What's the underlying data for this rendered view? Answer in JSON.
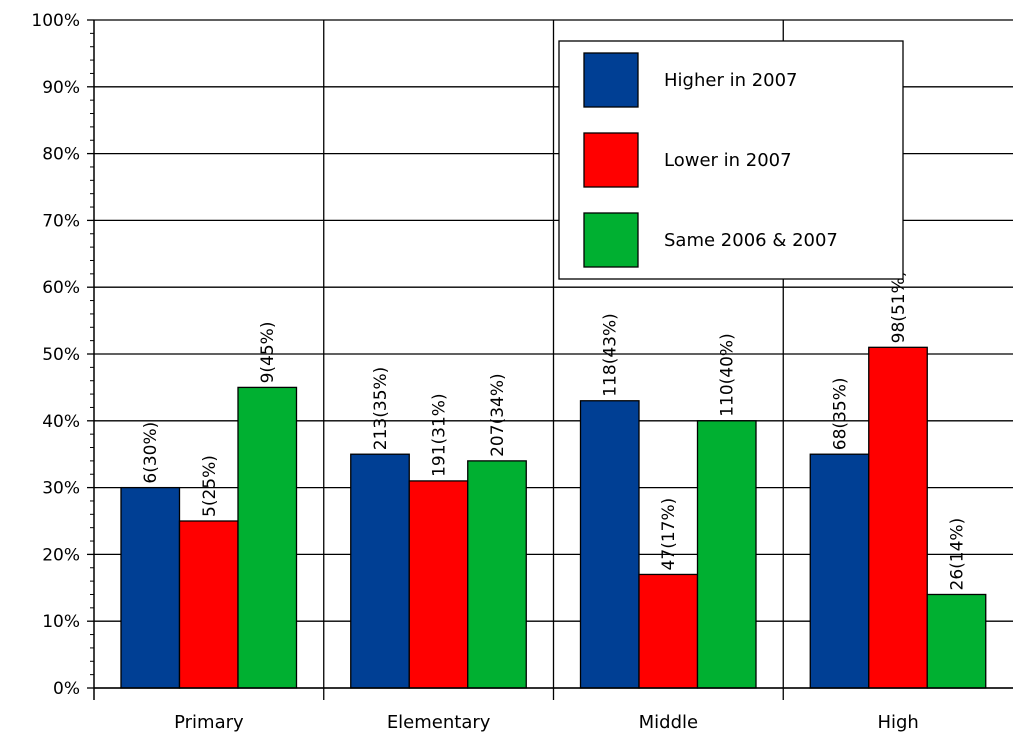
{
  "chart_data": {
    "type": "bar",
    "categories": [
      "Primary",
      "Elementary",
      "Middle",
      "High"
    ],
    "series": [
      {
        "name": "Higher in 2007",
        "color": "#003f94",
        "values": [
          30,
          35,
          43,
          35
        ],
        "labels": [
          "6(30%)",
          "213(35%)",
          "118(43%)",
          "68(35%)"
        ]
      },
      {
        "name": "Lower in 2007",
        "color": "#ff0000",
        "values": [
          25,
          31,
          17,
          51
        ],
        "labels": [
          "5(25%)",
          "191(31%)",
          "47(17%)",
          "98(51%)"
        ]
      },
      {
        "name": "Same 2006 & 2007",
        "color": "#00b031",
        "values": [
          45,
          34,
          40,
          14
        ],
        "labels": [
          "9(45%)",
          "207(34%)",
          "110(40%)",
          "26(14%)"
        ]
      }
    ],
    "ylim": [
      0,
      100
    ],
    "y_tick_labels": [
      "0%",
      "10%",
      "20%",
      "30%",
      "40%",
      "50%",
      "60%",
      "70%",
      "80%",
      "90%",
      "100%"
    ],
    "title": "",
    "xlabel": "",
    "ylabel": "",
    "grid": true,
    "legend_position": "top-right"
  }
}
